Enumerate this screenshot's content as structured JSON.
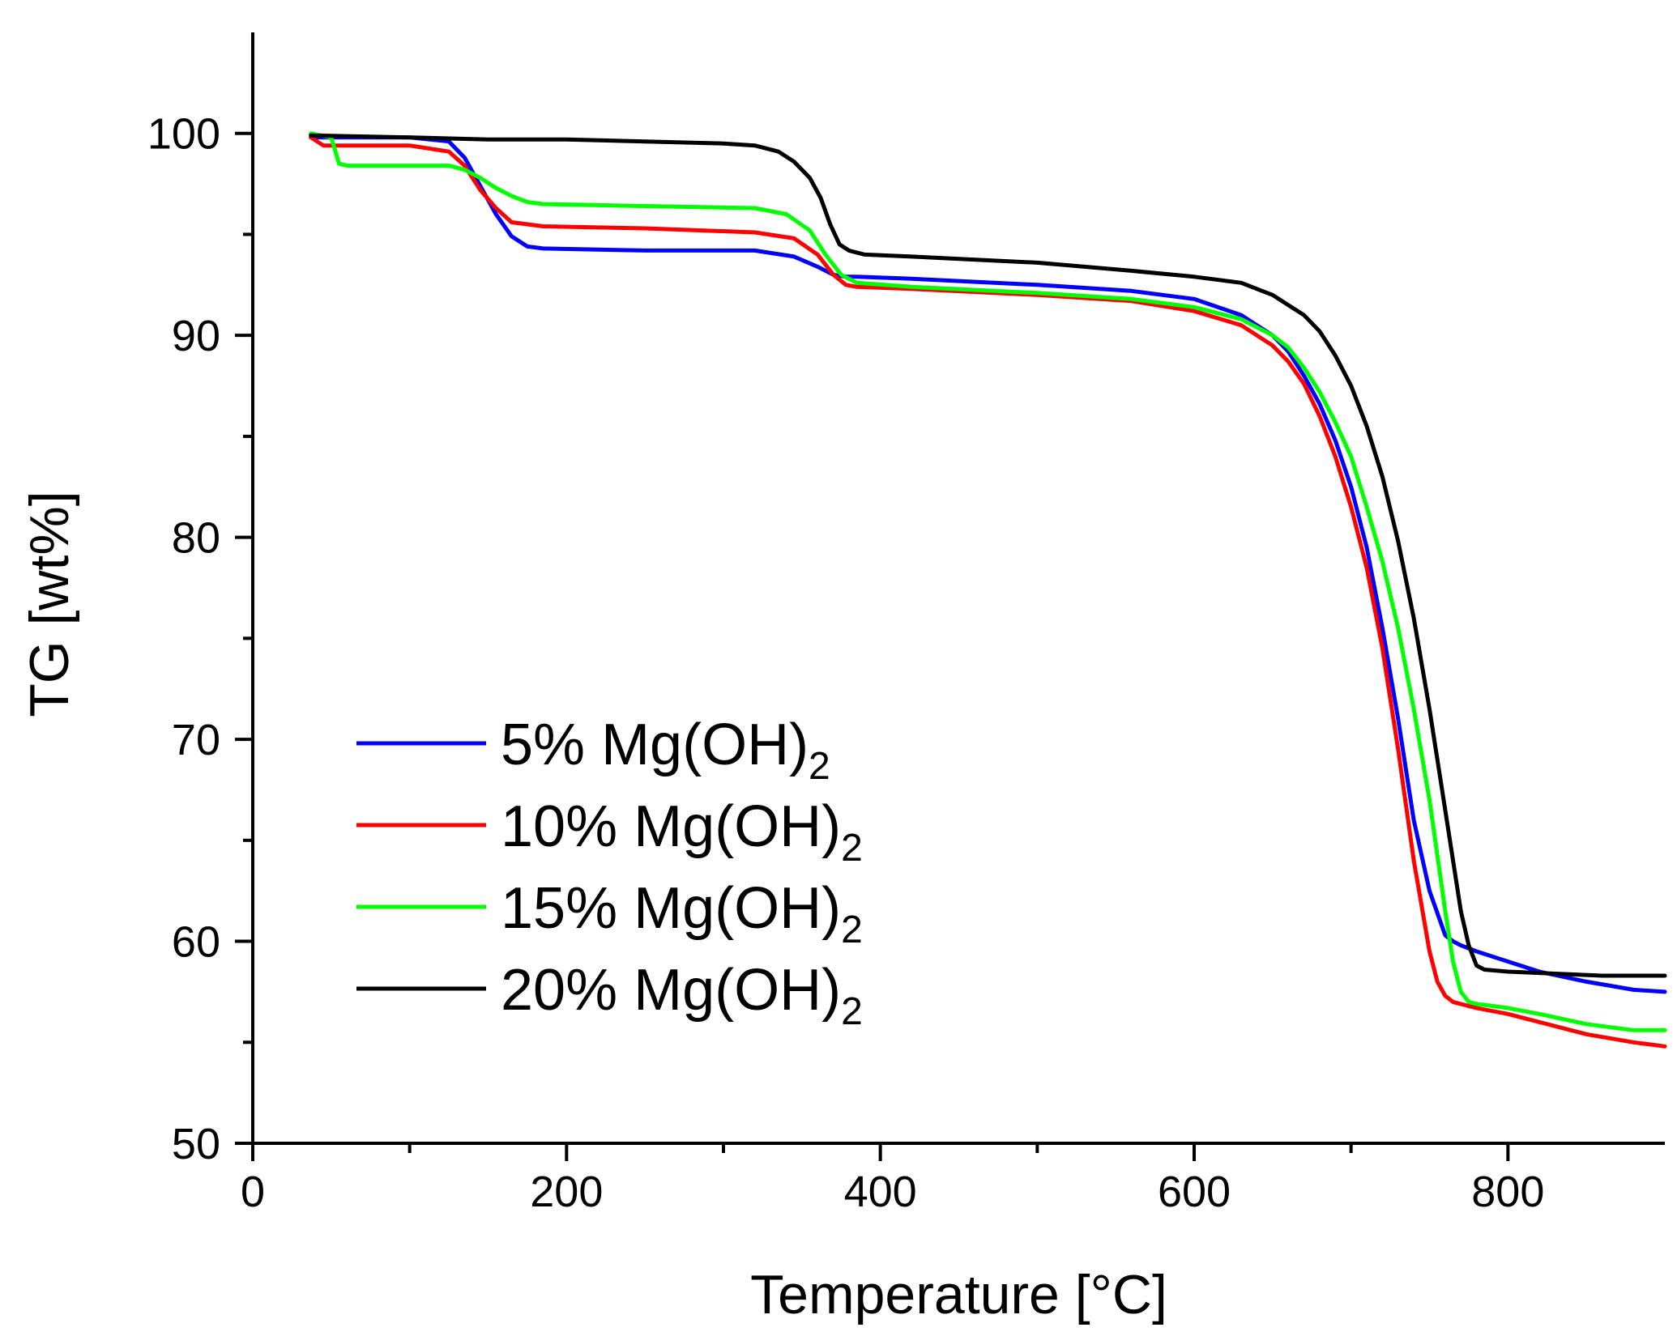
{
  "chart_data": {
    "type": "line",
    "title": "",
    "xlabel": "Temperature [°C]",
    "ylabel": "TG [wt%]",
    "xlim": [
      0,
      900
    ],
    "ylim": [
      50,
      105
    ],
    "xticks": [
      0,
      200,
      400,
      600,
      800
    ],
    "yticks": [
      50,
      60,
      70,
      80,
      90,
      100
    ],
    "grid": false,
    "legend_position": "bottom-left",
    "series": [
      {
        "name": "5% Mg(OH)2",
        "label_main": "5% Mg(OH)",
        "label_sub": "2",
        "color": "#0000ff",
        "x": [
          37,
          60,
          100,
          125,
          135,
          145,
          155,
          165,
          175,
          185,
          250,
          320,
          345,
          360,
          370,
          378,
          385,
          420,
          500,
          560,
          600,
          630,
          650,
          660,
          670,
          680,
          690,
          700,
          710,
          720,
          730,
          740,
          750,
          760,
          765,
          770,
          780,
          800,
          820,
          850,
          880,
          900
        ],
        "y": [
          99.8,
          99.8,
          99.8,
          99.6,
          98.8,
          97.4,
          96.0,
          94.9,
          94.4,
          94.3,
          94.2,
          94.2,
          93.9,
          93.4,
          93.0,
          92.9,
          92.9,
          92.8,
          92.5,
          92.2,
          91.8,
          91.0,
          90.0,
          89.2,
          88.0,
          86.6,
          84.8,
          82.5,
          79.5,
          75.5,
          71.0,
          66.0,
          62.5,
          60.3,
          60.0,
          59.8,
          59.5,
          59.0,
          58.5,
          58.0,
          57.6,
          57.5
        ]
      },
      {
        "name": "10% Mg(OH)2",
        "label_main": "10% Mg(OH)",
        "label_sub": "2",
        "color": "#ff0000",
        "x": [
          37,
          45,
          60,
          100,
          125,
          135,
          145,
          155,
          165,
          175,
          185,
          250,
          320,
          345,
          360,
          370,
          378,
          385,
          420,
          500,
          560,
          600,
          630,
          650,
          660,
          670,
          680,
          690,
          700,
          710,
          720,
          730,
          740,
          750,
          755,
          760,
          765,
          770,
          780,
          800,
          820,
          850,
          880,
          900
        ],
        "y": [
          99.8,
          99.4,
          99.4,
          99.4,
          99.1,
          98.4,
          97.2,
          96.3,
          95.6,
          95.5,
          95.4,
          95.3,
          95.1,
          94.8,
          94.0,
          93.0,
          92.5,
          92.4,
          92.3,
          92.0,
          91.7,
          91.2,
          90.5,
          89.5,
          88.7,
          87.6,
          86.0,
          84.0,
          81.5,
          78.5,
          74.5,
          69.5,
          64.0,
          59.5,
          58.0,
          57.3,
          57.0,
          56.9,
          56.7,
          56.4,
          56.0,
          55.4,
          55.0,
          54.8
        ]
      },
      {
        "name": "15% Mg(OH)2",
        "label_main": "15% Mg(OH)",
        "label_sub": "2",
        "color": "#00ff00",
        "x": [
          37,
          50,
          55,
          60,
          100,
          125,
          135,
          145,
          155,
          165,
          175,
          185,
          250,
          320,
          340,
          355,
          365,
          375,
          385,
          420,
          500,
          560,
          600,
          630,
          650,
          660,
          670,
          680,
          690,
          700,
          710,
          720,
          730,
          740,
          750,
          760,
          765,
          770,
          775,
          780,
          800,
          820,
          850,
          880,
          900
        ],
        "y": [
          100.0,
          99.8,
          98.5,
          98.4,
          98.4,
          98.4,
          98.2,
          97.8,
          97.3,
          96.9,
          96.6,
          96.5,
          96.4,
          96.3,
          96.0,
          95.2,
          94.0,
          93.0,
          92.6,
          92.4,
          92.1,
          91.8,
          91.4,
          90.8,
          90.0,
          89.4,
          88.4,
          87.2,
          85.7,
          84.0,
          81.5,
          78.8,
          75.5,
          71.5,
          67.0,
          61.5,
          59.0,
          57.5,
          57.0,
          56.9,
          56.7,
          56.4,
          55.9,
          55.6,
          55.6
        ]
      },
      {
        "name": "20% Mg(OH)2",
        "label_main": "20% Mg(OH)",
        "label_sub": "2",
        "color": "#000000",
        "x": [
          37,
          100,
          150,
          200,
          250,
          300,
          320,
          335,
          345,
          355,
          362,
          368,
          374,
          380,
          390,
          420,
          500,
          560,
          600,
          630,
          650,
          670,
          680,
          690,
          700,
          710,
          720,
          730,
          740,
          750,
          760,
          770,
          775,
          780,
          785,
          800,
          830,
          860,
          900
        ],
        "y": [
          99.9,
          99.8,
          99.7,
          99.7,
          99.6,
          99.5,
          99.4,
          99.1,
          98.6,
          97.8,
          96.8,
          95.5,
          94.5,
          94.2,
          94.0,
          93.9,
          93.6,
          93.2,
          92.9,
          92.6,
          92.0,
          91.0,
          90.2,
          89.0,
          87.5,
          85.5,
          83.0,
          79.8,
          76.0,
          71.5,
          66.5,
          61.5,
          59.8,
          58.8,
          58.6,
          58.5,
          58.4,
          58.3,
          58.3
        ]
      }
    ]
  }
}
